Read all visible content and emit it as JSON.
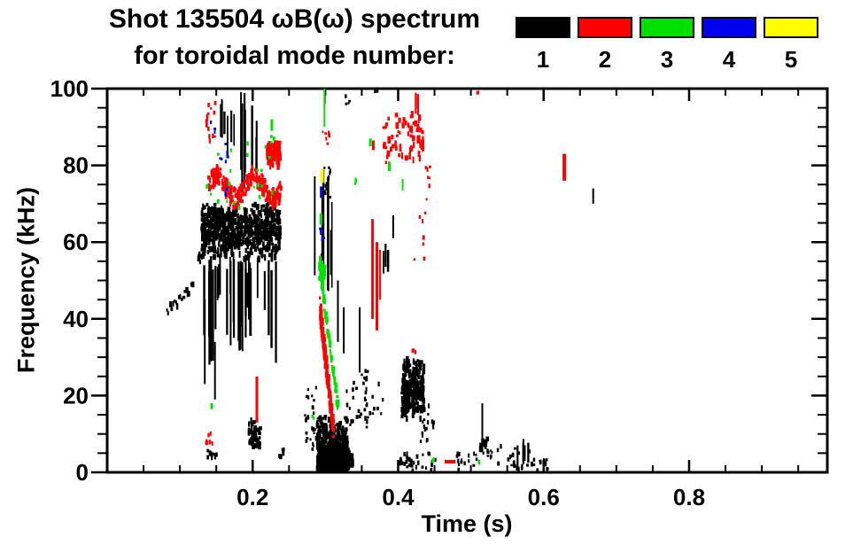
{
  "title": {
    "line1": "Shot 135504 ωB(ω) spectrum",
    "line2": "for toroidal mode number:"
  },
  "legend": {
    "items": [
      {
        "label": "1",
        "color": "#000000"
      },
      {
        "label": "2",
        "color": "#ff0000"
      },
      {
        "label": "3",
        "color": "#00e000"
      },
      {
        "label": "4",
        "color": "#0000ee"
      },
      {
        "label": "5",
        "color": "#ffff00"
      }
    ]
  },
  "chart_data": {
    "type": "scatter",
    "title": "Shot 135504 ωB(ω) spectrum for toroidal mode number 1–5",
    "xlabel": "Time (s)",
    "ylabel": "Frequency (kHz)",
    "xlim": [
      0,
      0.99
    ],
    "xticks": [
      0.2,
      0.4,
      0.6,
      0.8
    ],
    "xtick_labels": [
      "0.2",
      "0.4",
      "0.6",
      "0.8"
    ],
    "x_minor_step": 0.05,
    "ylim": [
      0,
      100
    ],
    "yticks": [
      0,
      20,
      40,
      60,
      80,
      100
    ],
    "ytick_labels": [
      "0",
      "20",
      "40",
      "60",
      "80",
      "100"
    ],
    "y_minor_step": 5,
    "grid": false,
    "legend_position": "top-right",
    "series": [
      {
        "name": "1",
        "toroidal_mode": 1,
        "color": "#000000",
        "clusters": [
          {
            "type": "chirp",
            "t": [
              0.081,
              0.118
            ],
            "f": [
              43,
              49
            ],
            "n": 18,
            "th": 2.5
          },
          {
            "type": "blob",
            "t": [
              0.128,
              0.236
            ],
            "f": [
              56,
              71
            ],
            "n": 650
          },
          {
            "type": "chirp",
            "t": [
              0.124,
              0.146
            ],
            "f": [
              55,
              67
            ],
            "n": 30,
            "th": 4
          },
          {
            "type": "vlines",
            "t": [
              0.13,
              0.233
            ],
            "fl": [
              28,
              48
            ],
            "fh": [
              52,
              57
            ],
            "n": 30
          },
          {
            "type": "vline",
            "t": 0.133,
            "f": [
              23,
              45
            ]
          },
          {
            "type": "vline",
            "t": 0.147,
            "f": [
              19,
              34
            ]
          },
          {
            "type": "vlines",
            "t": [
              0.15,
              0.161
            ],
            "fl": [
              87,
              91
            ],
            "fh": [
              93,
              98
            ],
            "n": 4
          },
          {
            "type": "vlines",
            "t": [
              0.163,
              0.174
            ],
            "fl": [
              83,
              87
            ],
            "fh": [
              89,
              95
            ],
            "n": 3
          },
          {
            "type": "vlines",
            "t": [
              0.18,
              0.193
            ],
            "fl": [
              72,
              79
            ],
            "fh": [
              94,
              100
            ],
            "n": 5
          },
          {
            "type": "vlines",
            "t": [
              0.197,
              0.206
            ],
            "fl": [
              74,
              80
            ],
            "fh": [
              87,
              97
            ],
            "n": 3
          },
          {
            "type": "blob",
            "t": [
              0.193,
              0.209
            ],
            "f": [
              6,
              15
            ],
            "n": 45
          },
          {
            "type": "specks",
            "t": [
              0.235,
              0.242
            ],
            "f": [
              3.5,
              6.5
            ],
            "n": 8
          },
          {
            "type": "specks",
            "t": [
              0.136,
              0.149
            ],
            "f": [
              4,
              6.5
            ],
            "n": 12
          },
          {
            "type": "specks",
            "t": [
              0.27,
              0.289
            ],
            "f": [
              6,
              26
            ],
            "n": 26
          },
          {
            "type": "specks",
            "t": [
              0.293,
              0.306
            ],
            "f": [
              72,
              80
            ],
            "n": 12
          },
          {
            "type": "vline",
            "t": 0.298,
            "f": [
              96,
              99.5
            ]
          },
          {
            "type": "vlines",
            "t": [
              0.284,
              0.323
            ],
            "fl": [
              44,
              54
            ],
            "fh": [
              57,
              79
            ],
            "n": 8
          },
          {
            "type": "vline",
            "t": 0.316,
            "f": [
              34,
              50
            ]
          },
          {
            "type": "vline",
            "t": 0.324,
            "f": [
              31,
              43
            ]
          },
          {
            "type": "blob",
            "t": [
              0.287,
              0.328
            ],
            "f": [
              1,
              16
            ],
            "n": 750,
            "bias": "low"
          },
          {
            "type": "blob",
            "t": [
              0.325,
              0.336
            ],
            "f": [
              1,
              7
            ],
            "n": 40
          },
          {
            "type": "specks",
            "t": [
              0.328,
              0.357
            ],
            "f": [
              12,
              26
            ],
            "n": 28
          },
          {
            "type": "vline",
            "t": 0.346,
            "f": [
              26,
              43
            ]
          },
          {
            "type": "specks",
            "t": [
              0.352,
              0.378
            ],
            "f": [
              15,
              27
            ],
            "n": 16
          },
          {
            "type": "vlines",
            "t": [
              0.375,
              0.394
            ],
            "fl": [
              50,
              54
            ],
            "fh": [
              57,
              60
            ],
            "n": 4
          },
          {
            "type": "vline",
            "t": 0.392,
            "f": [
              61,
              67
            ]
          },
          {
            "type": "specks",
            "t": [
              0.326,
              0.333
            ],
            "f": [
              96,
              99
            ],
            "n": 4
          },
          {
            "type": "specks",
            "t": [
              0.366,
              0.371
            ],
            "f": [
              98,
              100
            ],
            "n": 2
          },
          {
            "type": "blob",
            "t": [
              0.403,
              0.433
            ],
            "f": [
              14,
              31
            ],
            "n": 240
          },
          {
            "type": "specks",
            "t": [
              0.429,
              0.448
            ],
            "f": [
              8,
              18
            ],
            "n": 20
          },
          {
            "type": "specks",
            "t": [
              0.4,
              0.452
            ],
            "f": [
              1,
              5.5
            ],
            "n": 38
          },
          {
            "type": "specks",
            "t": [
              0.477,
              0.531
            ],
            "f": [
              1,
              6
            ],
            "n": 22
          },
          {
            "type": "vline",
            "t": 0.5145,
            "f": [
              9,
              18
            ]
          },
          {
            "type": "blob",
            "t": [
              0.511,
              0.522
            ],
            "f": [
              5,
              10
            ],
            "n": 14
          },
          {
            "type": "specks",
            "t": [
              0.533,
              0.56
            ],
            "f": [
              1.5,
              7.5
            ],
            "n": 12
          },
          {
            "type": "vlines",
            "t": [
              0.562,
              0.582
            ],
            "fl": [
              1,
              3
            ],
            "fh": [
              7,
              10
            ],
            "n": 5
          },
          {
            "type": "specks",
            "t": [
              0.556,
              0.59
            ],
            "f": [
              1,
              6
            ],
            "n": 14
          },
          {
            "type": "specks",
            "t": [
              0.59,
              0.606
            ],
            "f": [
              1,
              4
            ],
            "n": 10
          },
          {
            "type": "vline",
            "t": 0.667,
            "f": [
              70,
              74
            ]
          }
        ]
      },
      {
        "name": "2",
        "toroidal_mode": 2,
        "color": "#ff0000",
        "clusters": [
          {
            "type": "band",
            "t": [
              0.136,
              0.238
            ],
            "fc": 75,
            "amp": 3,
            "th": 5,
            "n": 240
          },
          {
            "type": "blob",
            "t": [
              0.218,
              0.236
            ],
            "f": [
              80,
              87.5
            ],
            "n": 95
          },
          {
            "type": "specks",
            "t": [
              0.134,
              0.147
            ],
            "f": [
              87,
              97
            ],
            "n": 14
          },
          {
            "type": "vline",
            "t": 0.204,
            "f": [
              13,
              25
            ],
            "w": 3
          },
          {
            "type": "specks",
            "t": [
              0.134,
              0.146
            ],
            "f": [
              8,
              12
            ],
            "n": 8
          },
          {
            "type": "chirp",
            "t": [
              0.291,
              0.31
            ],
            "f": [
              43,
              11
            ],
            "n": 150,
            "th": 6
          },
          {
            "type": "specks",
            "t": [
              0.295,
              0.305
            ],
            "f": [
              85,
              90
            ],
            "n": 8
          },
          {
            "type": "vline",
            "t": 0.363,
            "f": [
              40,
              66
            ],
            "w": 3
          },
          {
            "type": "vline",
            "t": 0.369,
            "f": [
              37,
              60
            ],
            "w": 3
          },
          {
            "type": "vline",
            "t": 0.374,
            "f": [
              45,
              58
            ],
            "w": 2
          },
          {
            "type": "vline",
            "t": 0.364,
            "f": [
              84,
              86.5
            ],
            "w": 3
          },
          {
            "type": "blob",
            "t": [
              0.378,
              0.433
            ],
            "f": [
              80,
              96
            ],
            "n": 70
          },
          {
            "type": "vlines",
            "t": [
              0.408,
              0.429
            ],
            "fl": [
              93,
              95
            ],
            "fh": [
              98,
              100
            ],
            "n": 3
          },
          {
            "type": "specks",
            "t": [
              0.436,
              0.443
            ],
            "f": [
              74,
              82
            ],
            "n": 6
          },
          {
            "type": "specks",
            "t": [
              0.4,
              0.44
            ],
            "f": [
              55,
              74
            ],
            "n": 8
          },
          {
            "type": "specks",
            "t": [
              0.418,
              0.423
            ],
            "f": [
              31,
              33
            ],
            "n": 3
          },
          {
            "type": "hline",
            "t": [
              0.464,
              0.479
            ],
            "f": 2.8,
            "h": 4
          },
          {
            "type": "specks",
            "t": [
              0.506,
              0.51
            ],
            "f": [
              98.5,
              100
            ],
            "n": 2
          },
          {
            "type": "vline",
            "t": 0.626,
            "f": [
              76,
              83
            ],
            "w": 4
          }
        ]
      },
      {
        "name": "3",
        "toroidal_mode": 3,
        "color": "#00e000",
        "clusters": [
          {
            "type": "specks",
            "t": [
              0.134,
              0.228
            ],
            "f": [
              69,
              88
            ],
            "n": 26
          },
          {
            "type": "vline",
            "t": 0.2245,
            "f": [
              89,
              92
            ],
            "w": 3
          },
          {
            "type": "vline",
            "t": 0.142,
            "f": [
              16.5,
              18
            ],
            "w": 3
          },
          {
            "type": "vline",
            "t": 0.2975,
            "f": [
              90,
              100
            ],
            "w": 2
          },
          {
            "type": "vline",
            "t": 0.292,
            "f": [
              64.5,
              67.5
            ],
            "w": 3
          },
          {
            "type": "blob",
            "t": [
              0.29,
              0.298
            ],
            "f": [
              49,
              57
            ],
            "n": 45
          },
          {
            "type": "chirp",
            "t": [
              0.293,
              0.316
            ],
            "f": [
              50,
              17
            ],
            "n": 55,
            "th": 3
          },
          {
            "type": "specks",
            "t": [
              0.336,
              0.341
            ],
            "f": [
              74,
              77
            ],
            "n": 4
          },
          {
            "type": "vline",
            "t": 0.36,
            "f": [
              85,
              87
            ],
            "w": 3
          },
          {
            "type": "vline",
            "t": 0.386,
            "f": [
              78.5,
              81
            ],
            "w": 3
          },
          {
            "type": "vline",
            "t": 0.405,
            "f": [
              73.5,
              76.5
            ],
            "w": 2
          },
          {
            "type": "specks",
            "t": [
              0.443,
              0.448
            ],
            "f": [
              3.5,
              5
            ],
            "n": 2
          },
          {
            "type": "specks",
            "t": [
              0.506,
              0.512
            ],
            "f": [
              3,
              4.6
            ],
            "n": 2
          },
          {
            "type": "specks",
            "t": [
              0.279,
              0.283
            ],
            "f": [
              14.5,
              15.5
            ],
            "n": 2
          }
        ]
      },
      {
        "name": "4",
        "toroidal_mode": 4,
        "color": "#0000ee",
        "clusters": [
          {
            "type": "specks",
            "t": [
              0.139,
              0.147
            ],
            "f": [
              88,
              92
            ],
            "n": 4
          },
          {
            "type": "specks",
            "t": [
              0.152,
              0.168
            ],
            "f": [
              81,
              89
            ],
            "n": 6
          },
          {
            "type": "specks",
            "t": [
              0.161,
              0.167
            ],
            "f": [
              73,
              75
            ],
            "n": 2
          },
          {
            "type": "vline",
            "t": 0.2925,
            "f": [
              71.5,
              74.5
            ],
            "w": 3
          },
          {
            "type": "specks",
            "t": [
              0.291,
              0.298
            ],
            "f": [
              59.5,
              64
            ],
            "n": 5
          }
        ]
      },
      {
        "name": "5",
        "toroidal_mode": 5,
        "color": "#ffff00",
        "clusters": [
          {
            "type": "vline",
            "t": 0.293,
            "f": [
              75.5,
              79
            ],
            "w": 4
          }
        ]
      }
    ]
  }
}
